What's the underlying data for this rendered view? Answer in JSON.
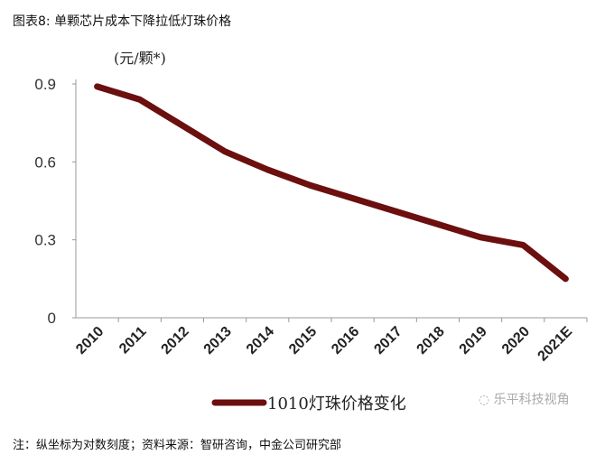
{
  "header": {
    "title": "图表8: 单颗芯片成本下降拉低灯珠价格"
  },
  "footer": {
    "note": "注：纵坐标为对数刻度；资料来源：智研咨询，中金公司研究部"
  },
  "watermark": {
    "text": "乐平科技视角"
  },
  "chart_data": {
    "type": "line",
    "title": "",
    "ylabel": "(元/颗*)",
    "xlabel": "",
    "categories": [
      "2010",
      "2011",
      "2012",
      "2013",
      "2014",
      "2015",
      "2016",
      "2017",
      "2018",
      "2019",
      "2020",
      "2021E"
    ],
    "yticks": [
      "0",
      "0.3",
      "0.6",
      "0.9"
    ],
    "ylim": [
      0,
      0.9
    ],
    "grid": false,
    "legend_position": "bottom",
    "series": [
      {
        "name": "1010灯珠价格变化",
        "color": "#6b0f0f",
        "values": [
          0.89,
          0.84,
          0.74,
          0.64,
          0.57,
          0.51,
          0.46,
          0.41,
          0.36,
          0.31,
          0.28,
          0.15
        ]
      }
    ]
  }
}
